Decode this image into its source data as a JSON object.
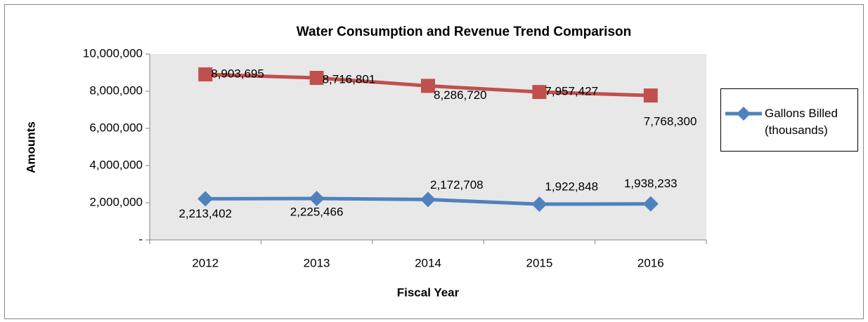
{
  "chart_data": {
    "type": "line",
    "title": "Water Consumption and Revenue Trend Comparison",
    "xlabel": "Fiscal Year",
    "ylabel": "Amounts",
    "categories": [
      "2012",
      "2013",
      "2014",
      "2015",
      "2016"
    ],
    "series": [
      {
        "name": "Gallons Billed (thousands)",
        "color": "#4f81bd",
        "marker": "diamond",
        "values": [
          2213402,
          2225466,
          2172708,
          1922848,
          1938233
        ],
        "value_labels": [
          "2,213,402",
          "2,225,466",
          "2,172,708",
          "1,922,848",
          "1,938,233"
        ]
      },
      {
        "color": "#c0504d",
        "marker": "square",
        "values": [
          8903695,
          8716801,
          8286720,
          7957427,
          7768300
        ],
        "value_labels": [
          "8,903,695",
          "8,716,801",
          "8,286,720",
          "7,957,427",
          "7,768,300"
        ]
      }
    ],
    "ylim": [
      0,
      10000000
    ],
    "yticks": [
      {
        "value": 0,
        "label": "-"
      },
      {
        "value": 2000000,
        "label": "2,000,000"
      },
      {
        "value": 4000000,
        "label": "4,000,000"
      },
      {
        "value": 6000000,
        "label": "6,000,000"
      },
      {
        "value": 8000000,
        "label": "8,000,000"
      },
      {
        "value": 10000000,
        "label": "10,000,000"
      }
    ],
    "legend": "right",
    "plot_background": "#e8e8e8"
  }
}
